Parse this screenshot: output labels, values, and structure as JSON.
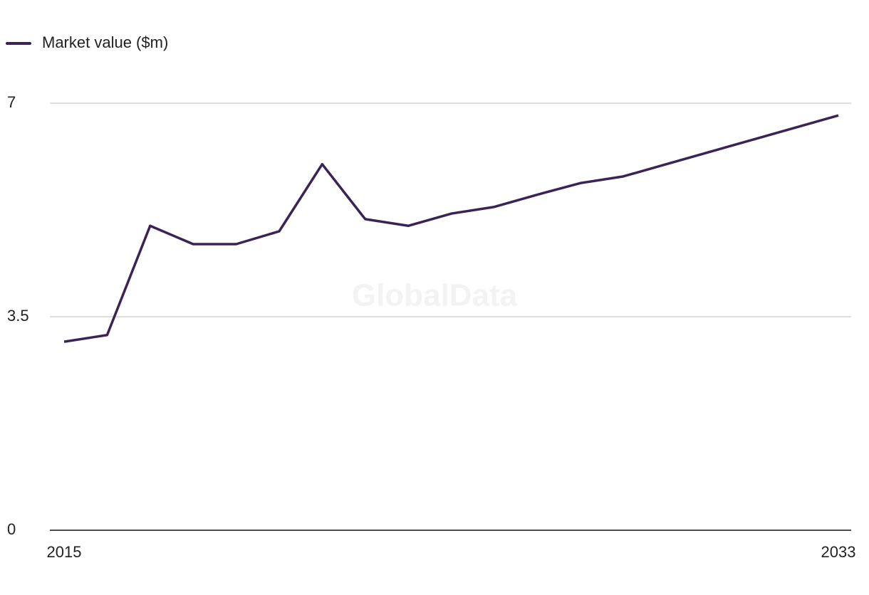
{
  "chart_data": {
    "type": "line",
    "watermark": "GlobalData",
    "x": [
      2015,
      2016,
      2017,
      2018,
      2019,
      2020,
      2021,
      2022,
      2023,
      2024,
      2025,
      2026,
      2027,
      2028,
      2029,
      2030,
      2031,
      2032,
      2033
    ],
    "series": [
      {
        "name": "Market value ($m)",
        "color": "#3a2457",
        "values": [
          3.09,
          3.2,
          4.99,
          4.69,
          4.69,
          4.9,
          6.0,
          5.1,
          4.99,
          5.19,
          5.3,
          5.5,
          5.69,
          5.8,
          6.0,
          6.2,
          6.4,
          6.6,
          6.8
        ]
      }
    ],
    "xlim": [
      2015,
      2033
    ],
    "xticks": [
      2015,
      2033
    ],
    "ylim": [
      0,
      7
    ],
    "yticks": [
      0,
      3.5,
      7
    ],
    "grid": true,
    "legend": "top-left"
  }
}
